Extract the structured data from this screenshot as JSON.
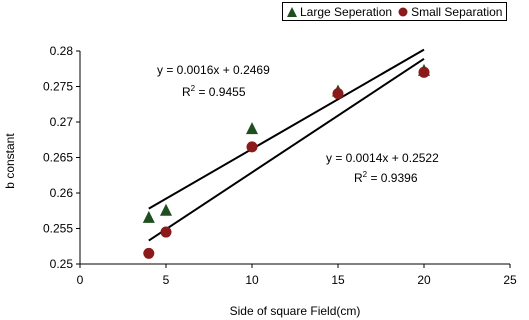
{
  "chart_data": {
    "type": "scatter",
    "title": "",
    "xlabel": "Side of square Field(cm)",
    "ylabel": "b constant",
    "xlim": [
      0,
      25
    ],
    "ylim": [
      0.25,
      0.28
    ],
    "x_ticks": [
      "0",
      "5",
      "10",
      "15",
      "20",
      "25"
    ],
    "y_ticks": [
      "0.25",
      "0.255",
      "0.26",
      "0.265",
      "0.27",
      "0.275",
      "0.28"
    ],
    "grid": false,
    "legend_position": "top-right",
    "series": [
      {
        "name": "Large Seperation",
        "marker": "triangle",
        "color": "#1f4f1f",
        "points": [
          [
            4,
            0.2565
          ],
          [
            5,
            0.2575
          ],
          [
            10,
            0.269
          ],
          [
            15,
            0.2743
          ],
          [
            20,
            0.2772
          ]
        ],
        "trendline": {
          "slope": 0.0016,
          "intercept": 0.2469,
          "x_range": [
            4,
            20
          ]
        },
        "equation": "y = 0.0016x + 0.2469",
        "r2_label": "R",
        "r2_exp": "2",
        "r2_value": " = 0.9455"
      },
      {
        "name": "Small Separation",
        "marker": "circle",
        "color": "#8b1a1a",
        "points": [
          [
            4,
            0.2515
          ],
          [
            5,
            0.2545
          ],
          [
            10,
            0.2665
          ],
          [
            15,
            0.274
          ],
          [
            20,
            0.277
          ]
        ],
        "trendline": {
          "slope": 0.0014,
          "intercept": 0.2522,
          "x_range": [
            4,
            20
          ]
        },
        "equation": "y = 0.0014x + 0.2522",
        "r2_label": "R",
        "r2_exp": "2",
        "r2_value": " = 0.9396"
      }
    ]
  }
}
